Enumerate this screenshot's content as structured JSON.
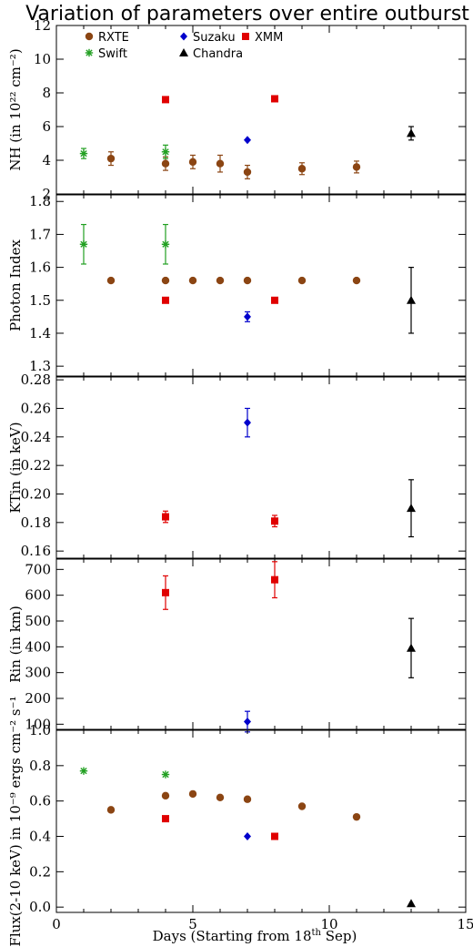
{
  "chart_data": {
    "type": "scatter",
    "title": "Variation of parameters over entire outburst",
    "xlabel": "Days (Starting from 18th Sep)",
    "xlim": [
      0,
      15
    ],
    "xticks": [
      0,
      5,
      10,
      15
    ],
    "colors": {
      "RXTE": "#8B4513",
      "Suzaku": "#0000CC",
      "XMM": "#E00000",
      "Swift": "#22A022",
      "Chandra": "#000000"
    },
    "legend": [
      {
        "name": "RXTE",
        "marker": "circle"
      },
      {
        "name": "Suzaku",
        "marker": "diamond"
      },
      {
        "name": "XMM",
        "marker": "square"
      },
      {
        "name": "Swift",
        "marker": "asterisk"
      },
      {
        "name": "Chandra",
        "marker": "triangle"
      }
    ],
    "panels": [
      {
        "id": "nh",
        "ylabel": "NH (in 10²² cm⁻²)",
        "ylim": [
          2,
          12
        ],
        "yticks": [
          2,
          4,
          6,
          8,
          10,
          12
        ],
        "series": [
          {
            "name": "RXTE",
            "points": [
              [
                2,
                4.1,
                0.4
              ],
              [
                4,
                3.8,
                0.4
              ],
              [
                5,
                3.9,
                0.4
              ],
              [
                6,
                3.8,
                0.5
              ],
              [
                7,
                3.3,
                0.4
              ],
              [
                9,
                3.5,
                0.35
              ],
              [
                11,
                3.6,
                0.35
              ]
            ]
          },
          {
            "name": "Suzaku",
            "points": [
              [
                7,
                5.2,
                0
              ]
            ]
          },
          {
            "name": "XMM",
            "points": [
              [
                4,
                7.6,
                0
              ],
              [
                8,
                7.65,
                0
              ]
            ]
          },
          {
            "name": "Swift",
            "points": [
              [
                1,
                4.4,
                0.3
              ],
              [
                4,
                4.5,
                0.4
              ]
            ]
          },
          {
            "name": "Chandra",
            "points": [
              [
                13,
                5.6,
                0.4
              ]
            ]
          }
        ]
      },
      {
        "id": "gamma",
        "ylabel": "Photon Index",
        "ylim": [
          1.27,
          1.82
        ],
        "yticks": [
          1.3,
          1.4,
          1.5,
          1.6,
          1.7,
          1.8
        ],
        "series": [
          {
            "name": "RXTE",
            "points": [
              [
                2,
                1.56,
                0.005
              ],
              [
                4,
                1.56,
                0.005
              ],
              [
                5,
                1.56,
                0.005
              ],
              [
                6,
                1.56,
                0.005
              ],
              [
                7,
                1.56,
                0.005
              ],
              [
                9,
                1.56,
                0.005
              ],
              [
                11,
                1.56,
                0.005
              ]
            ]
          },
          {
            "name": "Suzaku",
            "points": [
              [
                7,
                1.45,
                0.015
              ]
            ]
          },
          {
            "name": "XMM",
            "points": [
              [
                4,
                1.5,
                0.005
              ],
              [
                8,
                1.5,
                0.005
              ]
            ]
          },
          {
            "name": "Swift",
            "points": [
              [
                1,
                1.67,
                0.06
              ],
              [
                4,
                1.67,
                0.06
              ]
            ]
          },
          {
            "name": "Chandra",
            "points": [
              [
                13,
                1.5,
                0.1
              ]
            ]
          }
        ]
      },
      {
        "id": "kt",
        "ylabel": "KTin (in keV)",
        "ylim": [
          0.155,
          0.282
        ],
        "yticks": [
          0.16,
          0.18,
          0.2,
          0.22,
          0.24,
          0.26,
          0.28
        ],
        "series": [
          {
            "name": "Suzaku",
            "points": [
              [
                7,
                0.25,
                0.01
              ]
            ]
          },
          {
            "name": "XMM",
            "points": [
              [
                4,
                0.184,
                0.004
              ],
              [
                8,
                0.181,
                0.004
              ]
            ]
          },
          {
            "name": "Chandra",
            "points": [
              [
                13,
                0.19,
                0.02
              ]
            ]
          }
        ]
      },
      {
        "id": "rin",
        "ylabel": "Rin (in km)",
        "ylim": [
          80,
          740
        ],
        "yticks": [
          100,
          200,
          300,
          400,
          500,
          600,
          700
        ],
        "series": [
          {
            "name": "Suzaku",
            "points": [
              [
                7,
                110,
                40
              ]
            ]
          },
          {
            "name": "XMM",
            "points": [
              [
                4,
                610,
                65
              ],
              [
                8,
                660,
                70
              ]
            ]
          },
          {
            "name": "Chandra",
            "points": [
              [
                13,
                395,
                115
              ]
            ]
          }
        ]
      },
      {
        "id": "flux",
        "ylabel": "Flux(2-10 keV) in 10⁻⁹ ergs cm⁻² s⁻¹",
        "ylim": [
          -0.03,
          1.0
        ],
        "yticks": [
          0.0,
          0.2,
          0.4,
          0.6,
          0.8,
          1.0
        ],
        "series": [
          {
            "name": "RXTE",
            "points": [
              [
                2,
                0.55,
                0
              ],
              [
                4,
                0.63,
                0
              ],
              [
                5,
                0.64,
                0
              ],
              [
                6,
                0.62,
                0
              ],
              [
                7,
                0.61,
                0
              ],
              [
                9,
                0.57,
                0
              ],
              [
                11,
                0.51,
                0
              ]
            ]
          },
          {
            "name": "Suzaku",
            "points": [
              [
                7,
                0.4,
                0
              ]
            ]
          },
          {
            "name": "XMM",
            "points": [
              [
                4,
                0.5,
                0
              ],
              [
                8,
                0.4,
                0
              ]
            ]
          },
          {
            "name": "Swift",
            "points": [
              [
                1,
                0.77,
                0
              ],
              [
                4,
                0.75,
                0
              ]
            ]
          },
          {
            "name": "Chandra",
            "points": [
              [
                13,
                0.02,
                0
              ]
            ]
          }
        ]
      }
    ]
  }
}
